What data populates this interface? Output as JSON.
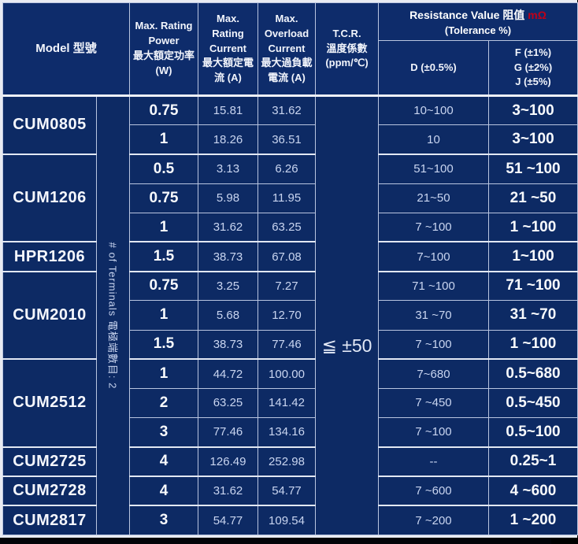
{
  "header": {
    "model": "Model 型號",
    "power": "Max. Rating\nPower\n最大額定功率\n(W)",
    "rating_current": "Max.\nRating\nCurrent\n最大額定電\n流  (A)",
    "overload_current": "Max.\nOverload\nCurrent\n最大過負載\n電流   (A)",
    "tcr": "T.C.R.\n溫度係數\n(ppm/℃)",
    "resistance_title": "Resistance Value 阻值",
    "resistance_unit": "mΩ",
    "resistance_sub": "(Tolerance %)",
    "col_d": "D (±0.5%)",
    "col_f": "F (±1%)\nG (±2%)\nJ (±5%)"
  },
  "terminals_note": "# of Terminals 電極端數目:  2",
  "tcr_value": "≦ ±50",
  "groups": [
    {
      "model": "CUM0805",
      "rows": [
        {
          "power": "0.75",
          "rating_current": "15.81",
          "overload_current": "31.62",
          "d": "10~100",
          "f": "3~100"
        },
        {
          "power": "1",
          "rating_current": "18.26",
          "overload_current": "36.51",
          "d": "10",
          "f": "3~100"
        }
      ]
    },
    {
      "model": "CUM1206",
      "rows": [
        {
          "power": "0.5",
          "rating_current": "3.13",
          "overload_current": "6.26",
          "d": "51~100",
          "f": "51 ~100"
        },
        {
          "power": "0.75",
          "rating_current": "5.98",
          "overload_current": "11.95",
          "d": "21~50",
          "f": "21 ~50"
        },
        {
          "power": "1",
          "rating_current": "31.62",
          "overload_current": "63.25",
          "d": "7 ~100",
          "f": "1 ~100"
        }
      ]
    },
    {
      "model": "HPR1206",
      "rows": [
        {
          "power": "1.5",
          "rating_current": "38.73",
          "overload_current": "67.08",
          "d": "7~100",
          "f": "1~100"
        }
      ]
    },
    {
      "model": "CUM2010",
      "rows": [
        {
          "power": "0.75",
          "rating_current": "3.25",
          "overload_current": "7.27",
          "d": "71 ~100",
          "f": "71 ~100"
        },
        {
          "power": "1",
          "rating_current": "5.68",
          "overload_current": "12.70",
          "d": "31 ~70",
          "f": "31 ~70"
        },
        {
          "power": "1.5",
          "rating_current": "38.73",
          "overload_current": "77.46",
          "d": "7 ~100",
          "f": "1 ~100"
        }
      ]
    },
    {
      "model": "CUM2512",
      "rows": [
        {
          "power": "1",
          "rating_current": "44.72",
          "overload_current": "100.00",
          "d": "7~680",
          "f": "0.5~680"
        },
        {
          "power": "2",
          "rating_current": "63.25",
          "overload_current": "141.42",
          "d": "7 ~450",
          "f": "0.5~450"
        },
        {
          "power": "3",
          "rating_current": "77.46",
          "overload_current": "134.16",
          "d": "7 ~100",
          "f": "0.5~100"
        }
      ]
    },
    {
      "model": "CUM2725",
      "rows": [
        {
          "power": "4",
          "rating_current": "126.49",
          "overload_current": "252.98",
          "d": "--",
          "f": "0.25~1"
        }
      ]
    },
    {
      "model": "CUM2728",
      "rows": [
        {
          "power": "4",
          "rating_current": "31.62",
          "overload_current": "54.77",
          "d": "7 ~600",
          "f": "4 ~600"
        }
      ]
    },
    {
      "model": "CUM2817",
      "rows": [
        {
          "power": "3",
          "rating_current": "54.77",
          "overload_current": "109.54",
          "d": "7 ~200",
          "f": "1 ~200"
        }
      ]
    }
  ],
  "colors": {
    "accent_red": "#c00018",
    "cell_bg": "#0d2a64",
    "header_bg": "#0e2c6b",
    "grid_line": "#b9c5e0"
  }
}
